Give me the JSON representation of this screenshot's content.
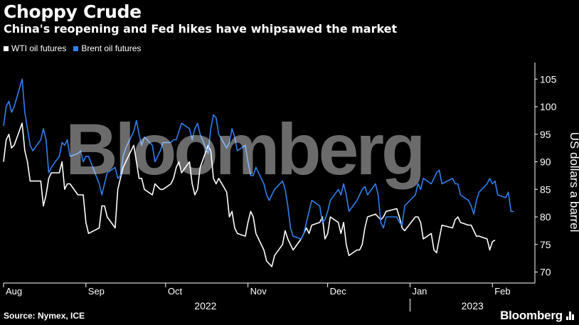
{
  "header": {
    "title": "Choppy Crude",
    "subtitle": "China's reopening and Fed hikes have whipsawed the market"
  },
  "legend": [
    {
      "label": "WTI oil futures",
      "color": "#ffffff"
    },
    {
      "label": "Brent oil futures",
      "color": "#2f80ed"
    }
  ],
  "footer": {
    "source": "Source: Nymex, ICE",
    "logo": "Bloomberg",
    "watermark": "Bloomberg"
  },
  "chart_data": {
    "type": "line",
    "title": "Choppy Crude",
    "subtitle": "China's reopening and Fed hikes have whipsawed the market",
    "ylabel": "US dollars a barrel",
    "xlabel": "",
    "ylim": [
      68,
      108
    ],
    "yticks": [
      70,
      75,
      80,
      85,
      90,
      95,
      100,
      105
    ],
    "xlim": [
      "2022-08-01",
      "2023-02-17"
    ],
    "month_ticks": [
      {
        "label": "Aug",
        "date": "2022-08-01"
      },
      {
        "label": "Sep",
        "date": "2022-09-01"
      },
      {
        "label": "Oct",
        "date": "2022-10-01"
      },
      {
        "label": "Nov",
        "date": "2022-11-01"
      },
      {
        "label": "Dec",
        "date": "2022-12-01"
      },
      {
        "label": "Jan",
        "date": "2023-01-01"
      },
      {
        "label": "Feb",
        "date": "2023-02-01"
      }
    ],
    "year_labels": [
      {
        "label": "2022",
        "from": "2022-08-01",
        "to": "2022-12-31"
      },
      {
        "label": "2023",
        "from": "2023-01-01",
        "to": "2023-02-17"
      }
    ],
    "grid": false,
    "legend_position": "top-left",
    "series": [
      {
        "name": "WTI oil futures",
        "color": "#ffffff",
        "points": [
          [
            "2022-08-01",
            90
          ],
          [
            "2022-08-02",
            94
          ],
          [
            "2022-08-03",
            95
          ],
          [
            "2022-08-04",
            92.5
          ],
          [
            "2022-08-05",
            93
          ],
          [
            "2022-08-08",
            97
          ],
          [
            "2022-08-09",
            92
          ],
          [
            "2022-08-10",
            90
          ],
          [
            "2022-08-11",
            86.5
          ],
          [
            "2022-08-12",
            86.5
          ],
          [
            "2022-08-15",
            86.5
          ],
          [
            "2022-08-16",
            82
          ],
          [
            "2022-08-17",
            84
          ],
          [
            "2022-08-18",
            87
          ],
          [
            "2022-08-19",
            88
          ],
          [
            "2022-08-22",
            88
          ],
          [
            "2022-08-23",
            90
          ],
          [
            "2022-08-24",
            85
          ],
          [
            "2022-08-25",
            86
          ],
          [
            "2022-08-26",
            86
          ],
          [
            "2022-08-29",
            84
          ],
          [
            "2022-08-30",
            84
          ],
          [
            "2022-08-31",
            84
          ],
          [
            "2022-09-01",
            79
          ],
          [
            "2022-09-02",
            77
          ],
          [
            "2022-09-06",
            78
          ],
          [
            "2022-09-07",
            82
          ],
          [
            "2022-09-08",
            82
          ],
          [
            "2022-09-09",
            80
          ],
          [
            "2022-09-12",
            78
          ],
          [
            "2022-09-13",
            85
          ],
          [
            "2022-09-14",
            87
          ],
          [
            "2022-09-15",
            89
          ],
          [
            "2022-09-16",
            90
          ],
          [
            "2022-09-19",
            93
          ],
          [
            "2022-09-20",
            90
          ],
          [
            "2022-09-21",
            87
          ],
          [
            "2022-09-22",
            87
          ],
          [
            "2022-09-23",
            85
          ],
          [
            "2022-09-26",
            84
          ],
          [
            "2022-09-27",
            86
          ],
          [
            "2022-09-28",
            85.5
          ],
          [
            "2022-09-29",
            85
          ],
          [
            "2022-09-30",
            85
          ],
          [
            "2022-10-03",
            86
          ],
          [
            "2022-10-04",
            87
          ],
          [
            "2022-10-05",
            89
          ],
          [
            "2022-10-06",
            90
          ],
          [
            "2022-10-07",
            88
          ],
          [
            "2022-10-10",
            90
          ],
          [
            "2022-10-11",
            86
          ],
          [
            "2022-10-12",
            84
          ],
          [
            "2022-10-13",
            85
          ],
          [
            "2022-10-14",
            89
          ],
          [
            "2022-10-17",
            93
          ],
          [
            "2022-10-18",
            92
          ],
          [
            "2022-10-19",
            87
          ],
          [
            "2022-10-20",
            86
          ],
          [
            "2022-10-21",
            87
          ],
          [
            "2022-10-24",
            84.5
          ],
          [
            "2022-10-25",
            80
          ],
          [
            "2022-10-26",
            81
          ],
          [
            "2022-10-27",
            78
          ],
          [
            "2022-10-28",
            77
          ],
          [
            "2022-10-31",
            76.5
          ],
          [
            "2022-11-01",
            79
          ],
          [
            "2022-11-02",
            81
          ],
          [
            "2022-11-03",
            80
          ],
          [
            "2022-11-04",
            77
          ],
          [
            "2022-11-07",
            74
          ],
          [
            "2022-11-08",
            72
          ],
          [
            "2022-11-09",
            71.5
          ],
          [
            "2022-11-10",
            71
          ],
          [
            "2022-11-11",
            73
          ],
          [
            "2022-11-14",
            75
          ],
          [
            "2022-11-15",
            77.5
          ],
          [
            "2022-11-16",
            76
          ],
          [
            "2022-11-17",
            75
          ],
          [
            "2022-11-18",
            74
          ],
          [
            "2022-11-21",
            76
          ],
          [
            "2022-11-22",
            77
          ],
          [
            "2022-11-23",
            78
          ],
          [
            "2022-11-24",
            77
          ],
          [
            "2022-11-25",
            78.5
          ],
          [
            "2022-11-28",
            79
          ],
          [
            "2022-11-29",
            80
          ],
          [
            "2022-11-30",
            76
          ],
          [
            "2022-12-01",
            77
          ],
          [
            "2022-12-02",
            80
          ],
          [
            "2022-12-05",
            79
          ],
          [
            "2022-12-06",
            77
          ],
          [
            "2022-12-07",
            79
          ],
          [
            "2022-12-08",
            75
          ],
          [
            "2022-12-09",
            73
          ],
          [
            "2022-12-12",
            74
          ],
          [
            "2022-12-13",
            74
          ],
          [
            "2022-12-14",
            75
          ],
          [
            "2022-12-15",
            78
          ],
          [
            "2022-12-16",
            80
          ],
          [
            "2022-12-19",
            80.5
          ],
          [
            "2022-12-20",
            80
          ],
          [
            "2022-12-21",
            79.5
          ],
          [
            "2022-12-22",
            80
          ],
          [
            "2022-12-23",
            81
          ],
          [
            "2022-12-27",
            81.5
          ],
          [
            "2022-12-28",
            80
          ],
          [
            "2022-12-29",
            78
          ],
          [
            "2022-12-30",
            77.5
          ],
          [
            "2023-01-03",
            80
          ],
          [
            "2023-01-04",
            80
          ],
          [
            "2023-01-05",
            79
          ],
          [
            "2023-01-06",
            76
          ],
          [
            "2023-01-09",
            77
          ],
          [
            "2023-01-10",
            74
          ],
          [
            "2023-01-11",
            73.5
          ],
          [
            "2023-01-12",
            76
          ],
          [
            "2023-01-13",
            78.5
          ],
          [
            "2023-01-17",
            78
          ],
          [
            "2023-01-18",
            79.5
          ],
          [
            "2023-01-19",
            80
          ],
          [
            "2023-01-20",
            79
          ],
          [
            "2023-01-23",
            78.5
          ],
          [
            "2023-01-24",
            78.5
          ],
          [
            "2023-01-25",
            77.5
          ],
          [
            "2023-01-26",
            76.5
          ],
          [
            "2023-01-27",
            76.5
          ],
          [
            "2023-01-30",
            76
          ],
          [
            "2023-01-31",
            74
          ],
          [
            "2023-02-01",
            75.5
          ],
          [
            "2023-02-02",
            75.8
          ]
        ]
      },
      {
        "name": "Brent oil futures",
        "color": "#2f80ed",
        "points": [
          [
            "2022-08-01",
            96.5
          ],
          [
            "2022-08-02",
            100
          ],
          [
            "2022-08-03",
            101
          ],
          [
            "2022-08-04",
            99
          ],
          [
            "2022-08-05",
            100
          ],
          [
            "2022-08-08",
            105
          ],
          [
            "2022-08-09",
            99
          ],
          [
            "2022-08-10",
            96
          ],
          [
            "2022-08-11",
            93
          ],
          [
            "2022-08-12",
            92
          ],
          [
            "2022-08-15",
            94
          ],
          [
            "2022-08-16",
            96
          ],
          [
            "2022-08-17",
            94
          ],
          [
            "2022-08-18",
            88
          ],
          [
            "2022-08-19",
            89
          ],
          [
            "2022-08-22",
            91
          ],
          [
            "2022-08-23",
            93.5
          ],
          [
            "2022-08-24",
            93
          ],
          [
            "2022-08-25",
            94
          ],
          [
            "2022-08-26",
            91
          ],
          [
            "2022-08-29",
            91.5
          ],
          [
            "2022-08-30",
            92
          ],
          [
            "2022-08-31",
            90
          ],
          [
            "2022-09-01",
            91
          ],
          [
            "2022-09-02",
            91
          ],
          [
            "2022-09-06",
            86
          ],
          [
            "2022-09-07",
            84
          ],
          [
            "2022-09-08",
            86
          ],
          [
            "2022-09-09",
            88
          ],
          [
            "2022-09-12",
            89
          ],
          [
            "2022-09-13",
            87
          ],
          [
            "2022-09-14",
            87.5
          ],
          [
            "2022-09-15",
            91
          ],
          [
            "2022-09-16",
            92.5
          ],
          [
            "2022-09-19",
            95.5
          ],
          [
            "2022-09-20",
            97.5
          ],
          [
            "2022-09-21",
            95
          ],
          [
            "2022-09-22",
            93
          ],
          [
            "2022-09-23",
            94.5
          ],
          [
            "2022-09-26",
            93
          ],
          [
            "2022-09-27",
            90
          ],
          [
            "2022-09-28",
            91
          ],
          [
            "2022-09-29",
            92
          ],
          [
            "2022-09-30",
            93.5
          ],
          [
            "2022-10-03",
            93.5
          ],
          [
            "2022-10-04",
            94
          ],
          [
            "2022-10-05",
            94
          ],
          [
            "2022-10-06",
            95.5
          ],
          [
            "2022-10-07",
            97
          ],
          [
            "2022-10-10",
            96
          ],
          [
            "2022-10-11",
            94
          ],
          [
            "2022-10-12",
            96
          ],
          [
            "2022-10-13",
            97
          ],
          [
            "2022-10-14",
            95
          ],
          [
            "2022-10-17",
            91.5
          ],
          [
            "2022-10-18",
            96
          ],
          [
            "2022-10-19",
            98.5
          ],
          [
            "2022-10-20",
            98
          ],
          [
            "2022-10-21",
            95
          ],
          [
            "2022-10-24",
            92.5
          ],
          [
            "2022-10-25",
            93.5
          ],
          [
            "2022-10-26",
            96
          ],
          [
            "2022-10-27",
            94.5
          ],
          [
            "2022-10-28",
            92
          ],
          [
            "2022-10-31",
            93
          ],
          [
            "2022-11-01",
            90
          ],
          [
            "2022-11-02",
            87.5
          ],
          [
            "2022-11-03",
            87.5
          ],
          [
            "2022-11-04",
            89
          ],
          [
            "2022-11-07",
            86
          ],
          [
            "2022-11-08",
            84
          ],
          [
            "2022-11-09",
            83
          ],
          [
            "2022-11-10",
            84
          ],
          [
            "2022-11-11",
            85
          ],
          [
            "2022-11-14",
            86.5
          ],
          [
            "2022-11-15",
            85
          ],
          [
            "2022-11-16",
            82
          ],
          [
            "2022-11-17",
            78
          ],
          [
            "2022-11-18",
            76.5
          ],
          [
            "2022-11-21",
            76
          ],
          [
            "2022-11-22",
            77
          ],
          [
            "2022-11-23",
            79
          ],
          [
            "2022-11-24",
            81
          ],
          [
            "2022-11-25",
            83
          ],
          [
            "2022-11-28",
            82
          ],
          [
            "2022-11-29",
            79
          ],
          [
            "2022-11-30",
            79.5
          ],
          [
            "2022-12-01",
            81
          ],
          [
            "2022-12-02",
            83
          ],
          [
            "2022-12-05",
            85
          ],
          [
            "2022-12-06",
            84
          ],
          [
            "2022-12-07",
            86
          ],
          [
            "2022-12-08",
            84
          ],
          [
            "2022-12-09",
            81
          ],
          [
            "2022-12-12",
            83
          ],
          [
            "2022-12-13",
            84
          ],
          [
            "2022-12-14",
            85
          ],
          [
            "2022-12-15",
            85.5
          ],
          [
            "2022-12-16",
            84
          ],
          [
            "2022-12-19",
            86
          ],
          [
            "2022-12-20",
            84
          ],
          [
            "2022-12-21",
            79
          ],
          [
            "2022-12-22",
            78
          ],
          [
            "2022-12-23",
            80
          ],
          [
            "2022-12-27",
            80
          ],
          [
            "2022-12-28",
            79
          ],
          [
            "2022-12-29",
            78.5
          ],
          [
            "2022-12-30",
            82
          ],
          [
            "2023-01-03",
            84
          ],
          [
            "2023-01-04",
            86
          ],
          [
            "2023-01-05",
            85
          ],
          [
            "2023-01-06",
            87
          ],
          [
            "2023-01-09",
            86
          ],
          [
            "2023-01-10",
            87
          ],
          [
            "2023-01-11",
            88
          ],
          [
            "2023-01-12",
            88.5
          ],
          [
            "2023-01-13",
            86
          ],
          [
            "2023-01-17",
            87
          ],
          [
            "2023-01-18",
            86
          ],
          [
            "2023-01-19",
            86
          ],
          [
            "2023-01-20",
            84
          ],
          [
            "2023-01-23",
            83
          ],
          [
            "2023-01-24",
            82
          ],
          [
            "2023-01-25",
            80.5
          ],
          [
            "2023-01-26",
            83
          ],
          [
            "2023-01-27",
            84.5
          ],
          [
            "2023-01-30",
            86
          ],
          [
            "2023-01-31",
            87
          ],
          [
            "2023-02-01",
            86
          ],
          [
            "2023-02-02",
            86.5
          ],
          [
            "2023-02-03",
            84
          ],
          [
            "2023-02-06",
            83.5
          ],
          [
            "2023-02-07",
            84.5
          ],
          [
            "2023-02-08",
            81
          ],
          [
            "2023-02-09",
            81
          ]
        ]
      }
    ]
  }
}
